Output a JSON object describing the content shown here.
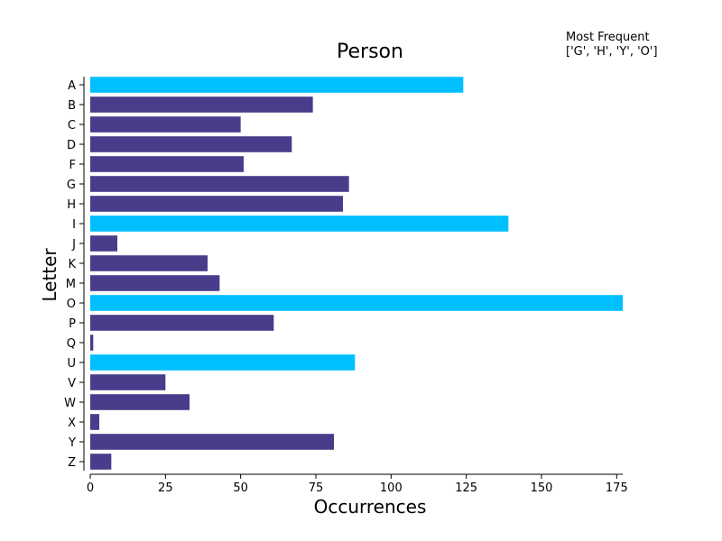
{
  "chart_data": {
    "type": "bar",
    "orientation": "horizontal",
    "title": "Person",
    "xlabel": "Occurrences",
    "ylabel": "Letter",
    "xlim": [
      0,
      177
    ],
    "xticks": [
      0,
      25,
      50,
      75,
      100,
      125,
      150,
      175
    ],
    "categories": [
      "A",
      "B",
      "C",
      "D",
      "F",
      "G",
      "H",
      "I",
      "J",
      "K",
      "M",
      "O",
      "P",
      "Q",
      "U",
      "V",
      "W",
      "X",
      "Y",
      "Z"
    ],
    "values": [
      124,
      74,
      50,
      67,
      51,
      86,
      84,
      139,
      9,
      39,
      43,
      177,
      61,
      1,
      88,
      25,
      33,
      3,
      81,
      7
    ],
    "highlighted": [
      "A",
      "I",
      "O",
      "U"
    ],
    "colors": {
      "default": "#483d8b",
      "highlight": "#00bfff"
    },
    "grid": false,
    "annotation": {
      "title": "Most Frequent",
      "text": "['G', 'H', 'Y', 'O']"
    }
  }
}
